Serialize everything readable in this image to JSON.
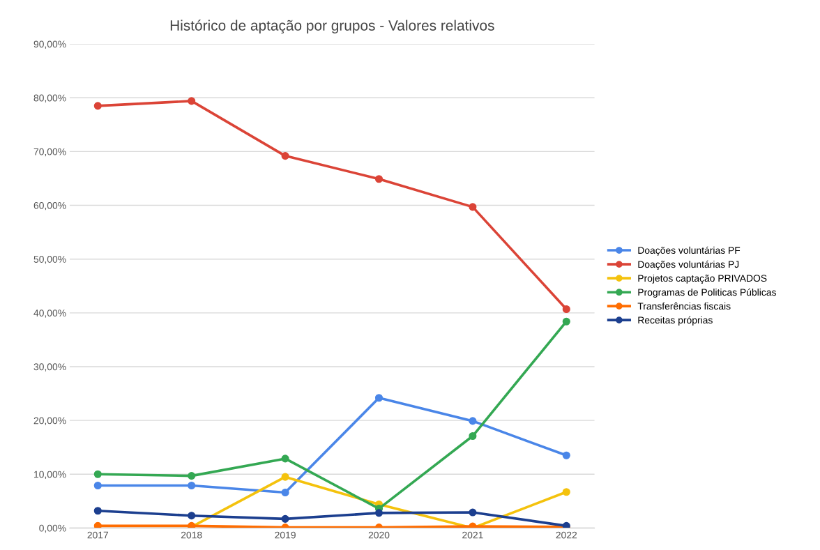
{
  "chart_data": {
    "type": "line",
    "title": "Histórico de aptação por grupos - Valores relativos",
    "categories": [
      "2017",
      "2018",
      "2019",
      "2020",
      "2021",
      "2022"
    ],
    "series": [
      {
        "name": "Doações voluntárias PF",
        "color": "#4a86e8",
        "values": [
          7.9,
          7.9,
          6.6,
          24.2,
          19.9,
          13.5
        ]
      },
      {
        "name": "Doações voluntárias PJ",
        "color": "#db4437",
        "values": [
          78.5,
          79.4,
          69.2,
          64.9,
          59.7,
          40.7
        ]
      },
      {
        "name": "Projetos captação PRIVADOS",
        "color": "#f4c20d",
        "values": [
          null,
          0.2,
          9.5,
          4.4,
          0,
          6.7
        ]
      },
      {
        "name": "Programas de Politicas Públicas",
        "color": "#34a853",
        "values": [
          10.0,
          9.7,
          12.9,
          3.6,
          17.1,
          38.4
        ]
      },
      {
        "name": "Transferências fiscais",
        "color": "#ff6d01",
        "values": [
          0.4,
          0.4,
          0.1,
          0.1,
          0.3,
          0.2
        ]
      },
      {
        "name": "Receitas próprias",
        "color": "#1c3f8f",
        "values": [
          3.2,
          2.3,
          1.7,
          2.8,
          2.9,
          0.4
        ]
      }
    ],
    "ylim": [
      0,
      90
    ],
    "yticks": [
      {
        "value": 0,
        "label": "0,00%"
      },
      {
        "value": 10,
        "label": "10,00%"
      },
      {
        "value": 20,
        "label": "20,00%"
      },
      {
        "value": 30,
        "label": "30,00%"
      },
      {
        "value": 40,
        "label": "40,00%"
      },
      {
        "value": 50,
        "label": "50,00%"
      },
      {
        "value": 60,
        "label": "60,00%"
      },
      {
        "value": 70,
        "label": "70,00%"
      },
      {
        "value": 80,
        "label": "80,00%"
      },
      {
        "value": 90,
        "label": "90,00%"
      }
    ],
    "grid": "y",
    "legend": "right",
    "marker": "circle",
    "line_style": "solid"
  }
}
